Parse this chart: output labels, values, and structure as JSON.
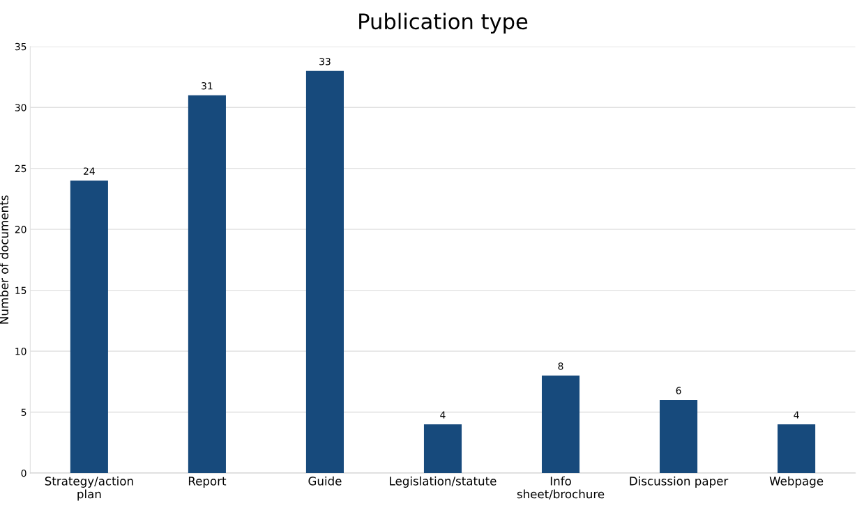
{
  "chart_data": {
    "type": "bar",
    "title": "Publication type",
    "ylabel": "Number of documents",
    "categories": [
      "Strategy/action plan",
      "Report",
      "Guide",
      "Legislation/statute",
      "Info sheet/brochure",
      "Discussion paper",
      "Webpage"
    ],
    "values": [
      24,
      31,
      33,
      4,
      8,
      6,
      4
    ],
    "color": "#174a7c",
    "ylim": [
      0,
      35
    ],
    "yticks": [
      0,
      5,
      10,
      15,
      20,
      25,
      30,
      35
    ],
    "grid": "y",
    "data_labels": true
  }
}
